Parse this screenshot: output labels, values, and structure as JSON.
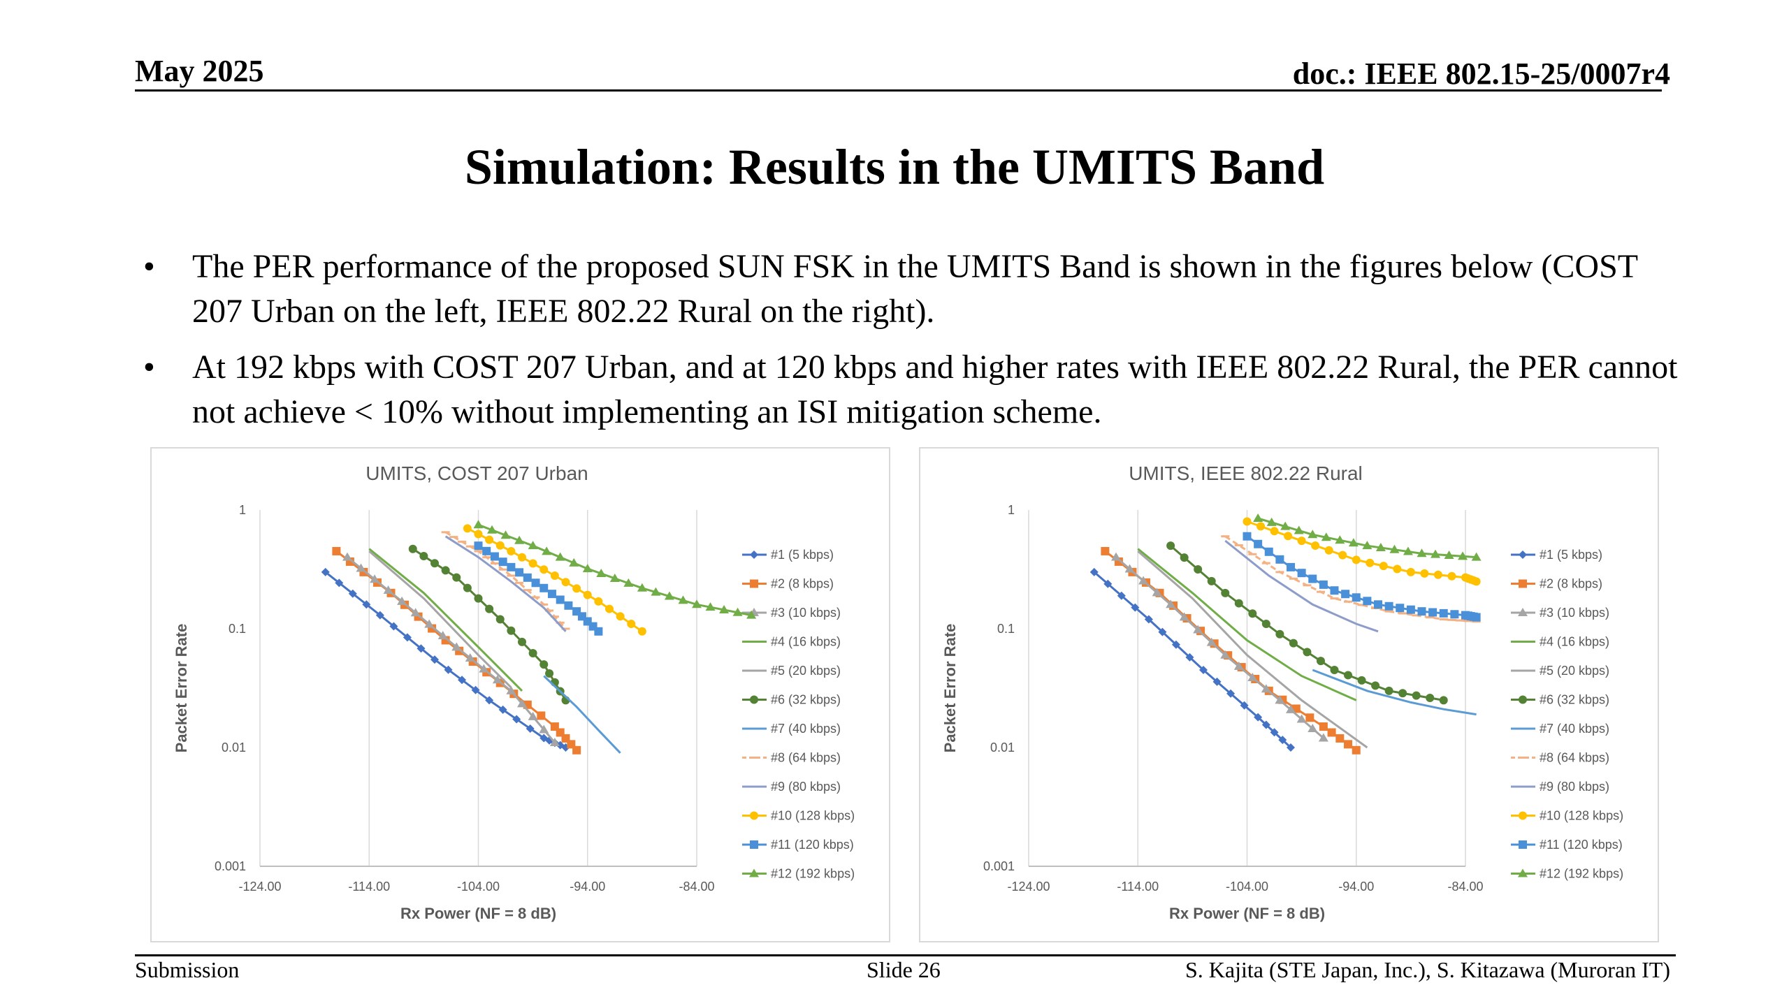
{
  "header": {
    "date": "May 2025",
    "doc": "doc.: IEEE 802.15-25/0007r4"
  },
  "title": "Simulation: Results in the UMITS Band",
  "bullets": [
    "The PER performance of the proposed SUN FSK in the UMITS Band is shown in the figures below (COST 207 Urban on the left, IEEE 802.22 Rural on the right).",
    "At 192 kbps with COST 207 Urban, and at 120 kbps and higher rates with IEEE 802.22 Rural, the PER cannot not achieve < 10% without implementing an ISI mitigation scheme."
  ],
  "bullet_symbol": "•",
  "footer": {
    "left": "Submission",
    "center": "Slide 26",
    "right": "S. Kajita (STE Japan, Inc.), S. Kitazawa (Muroran IT)"
  },
  "colors": {
    "s1": "#4472c4",
    "s2": "#ed7d31",
    "s3": "#a5a5a5",
    "s4": "#70ad47",
    "s5": "#a5a5a5",
    "s6": "#548235",
    "s7": "#5b9bd5",
    "s8": "#f4b183",
    "s9": "#8e9cc9",
    "s10": "#ffc000",
    "s11": "#4a90d9",
    "s12": "#70ad47"
  },
  "chart_data": [
    {
      "type": "line",
      "title": "UMITS, COST 207 Urban",
      "xlabel": "Rx Power (NF = 8 dB)",
      "ylabel": "Packet Error Rate",
      "xlim": [
        -124,
        -84
      ],
      "ylim": [
        0.001,
        1
      ],
      "yscale": "log",
      "xticks": [
        "-124.00",
        "-114.00",
        "-104.00",
        "-94.00",
        "-84.00"
      ],
      "yticks": [
        "1",
        "0.1",
        "0.01",
        "0.001"
      ],
      "grid": "vertical",
      "legend_position": "right",
      "series": [
        {
          "name": "#1 (5 kbps)",
          "x": [
            -118,
            -113,
            -108,
            -103,
            -98,
            -96
          ],
          "y": [
            0.3,
            0.13,
            0.055,
            0.025,
            0.012,
            0.01
          ]
        },
        {
          "name": "#2 (8 kbps)",
          "x": [
            -117,
            -112,
            -107,
            -102,
            -97,
            -95
          ],
          "y": [
            0.45,
            0.2,
            0.08,
            0.035,
            0.015,
            0.0095
          ]
        },
        {
          "name": "#3 (10 kbps)",
          "x": [
            -116,
            -111,
            -106,
            -101,
            -97
          ],
          "y": [
            0.4,
            0.17,
            0.07,
            0.03,
            0.011
          ]
        },
        {
          "name": "#4 (16 kbps)",
          "x": [
            -114,
            -109,
            -104,
            -100
          ],
          "y": [
            0.47,
            0.2,
            0.07,
            0.03
          ]
        },
        {
          "name": "#5 (20 kbps)",
          "x": [
            -114,
            -109,
            -104,
            -101
          ],
          "y": [
            0.45,
            0.18,
            0.06,
            0.032
          ]
        },
        {
          "name": "#6 (32 kbps)",
          "x": [
            -110,
            -106,
            -102,
            -98,
            -96
          ],
          "y": [
            0.47,
            0.27,
            0.12,
            0.05,
            0.025
          ]
        },
        {
          "name": "#7 (40 kbps)",
          "x": [
            -98,
            -95,
            -93,
            -91
          ],
          "y": [
            0.04,
            0.022,
            0.014,
            0.009
          ]
        },
        {
          "name": "#8 (64 kbps)",
          "x": [
            -107,
            -104,
            -101,
            -98,
            -96
          ],
          "y": [
            0.65,
            0.45,
            0.28,
            0.16,
            0.1
          ]
        },
        {
          "name": "#9 (80 kbps)",
          "x": [
            -107,
            -104,
            -101,
            -98,
            -96
          ],
          "y": [
            0.6,
            0.4,
            0.25,
            0.15,
            0.095
          ]
        },
        {
          "name": "#10 (128 kbps)",
          "x": [
            -105,
            -101,
            -97,
            -93,
            -89
          ],
          "y": [
            0.7,
            0.45,
            0.28,
            0.17,
            0.095
          ]
        },
        {
          "name": "#11 (120 kbps)",
          "x": [
            -104,
            -101,
            -98,
            -95,
            -93
          ],
          "y": [
            0.5,
            0.33,
            0.22,
            0.14,
            0.095
          ]
        },
        {
          "name": "#12 (192 kbps)",
          "x": [
            -104,
            -99,
            -94,
            -89,
            -84,
            -79
          ],
          "y": [
            0.75,
            0.5,
            0.32,
            0.22,
            0.16,
            0.13
          ]
        }
      ]
    },
    {
      "type": "line",
      "title": "UMITS, IEEE 802.22 Rural",
      "xlabel": "Rx Power (NF = 8 dB)",
      "ylabel": "Packet Error Rate",
      "xlim": [
        -124,
        -84
      ],
      "ylim": [
        0.001,
        1
      ],
      "yscale": "log",
      "xticks": [
        "-124.00",
        "-114.00",
        "-104.00",
        "-94.00",
        "-84.00"
      ],
      "yticks": [
        "1",
        "0.1",
        "0.01",
        "0.001"
      ],
      "grid": "vertical",
      "legend_position": "right",
      "series": [
        {
          "name": "#1 (5 kbps)",
          "x": [
            -118,
            -113,
            -108,
            -103,
            -100
          ],
          "y": [
            0.3,
            0.12,
            0.045,
            0.018,
            0.01
          ]
        },
        {
          "name": "#2 (8 kbps)",
          "x": [
            -117,
            -112,
            -107,
            -102,
            -97,
            -94
          ],
          "y": [
            0.45,
            0.2,
            0.075,
            0.03,
            0.015,
            0.0095
          ]
        },
        {
          "name": "#3 (10 kbps)",
          "x": [
            -116,
            -111,
            -106,
            -101,
            -97
          ],
          "y": [
            0.4,
            0.16,
            0.06,
            0.025,
            0.012
          ]
        },
        {
          "name": "#4 (16 kbps)",
          "x": [
            -114,
            -109,
            -104,
            -99,
            -94
          ],
          "y": [
            0.47,
            0.2,
            0.08,
            0.04,
            0.025
          ]
        },
        {
          "name": "#5 (20 kbps)",
          "x": [
            -114,
            -109,
            -104,
            -99,
            -93
          ],
          "y": [
            0.45,
            0.18,
            0.06,
            0.025,
            0.01
          ]
        },
        {
          "name": "#6 (32 kbps)",
          "x": [
            -111,
            -106,
            -101,
            -96,
            -91,
            -86
          ],
          "y": [
            0.5,
            0.2,
            0.09,
            0.045,
            0.03,
            0.025
          ]
        },
        {
          "name": "#7 (40 kbps)",
          "x": [
            -98,
            -93,
            -89,
            -86,
            -83
          ],
          "y": [
            0.045,
            0.03,
            0.024,
            0.021,
            0.019
          ]
        },
        {
          "name": "#8 (64 kbps)",
          "x": [
            -106,
            -101,
            -96,
            -91,
            -86,
            -83
          ],
          "y": [
            0.6,
            0.3,
            0.18,
            0.14,
            0.12,
            0.115
          ]
        },
        {
          "name": "#9 (80 kbps)",
          "x": [
            -106,
            -102,
            -98,
            -94,
            -92
          ],
          "y": [
            0.55,
            0.28,
            0.16,
            0.11,
            0.095
          ]
        },
        {
          "name": "#10 (128 kbps)",
          "x": [
            -104,
            -99,
            -94,
            -89,
            -84,
            -83
          ],
          "y": [
            0.8,
            0.55,
            0.38,
            0.3,
            0.27,
            0.25
          ]
        },
        {
          "name": "#11 (120 kbps)",
          "x": [
            -104,
            -100,
            -96,
            -92,
            -88,
            -84,
            -83
          ],
          "y": [
            0.6,
            0.33,
            0.21,
            0.16,
            0.14,
            0.13,
            0.125
          ]
        },
        {
          "name": "#12 (192 kbps)",
          "x": [
            -103,
            -98,
            -93,
            -88,
            -83
          ],
          "y": [
            0.85,
            0.62,
            0.5,
            0.43,
            0.4
          ]
        }
      ]
    }
  ]
}
